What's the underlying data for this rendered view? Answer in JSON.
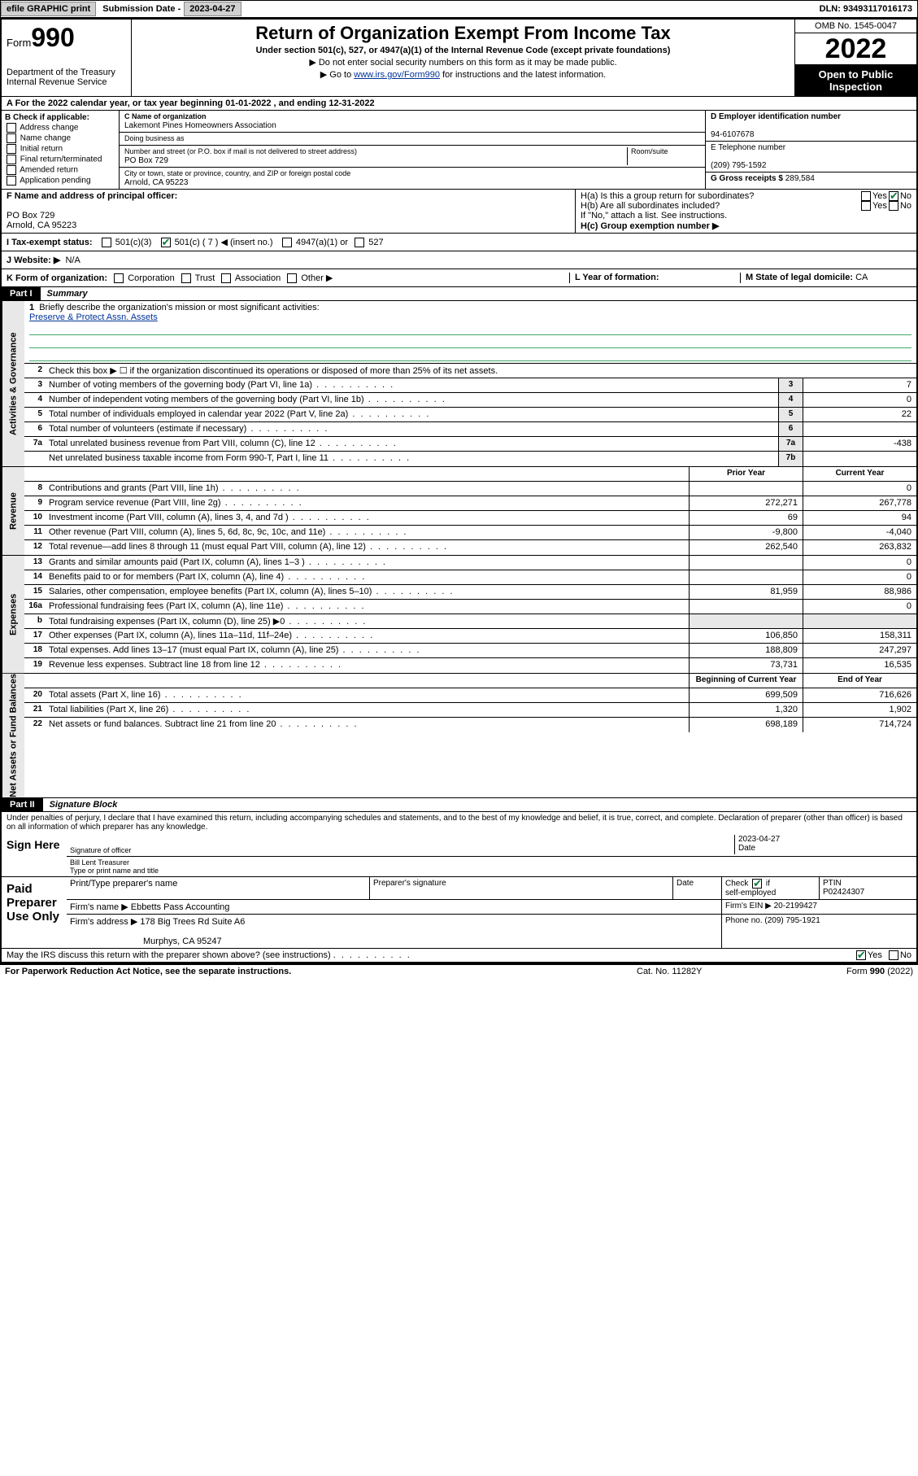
{
  "topbar": {
    "efile_btn": "efile GRAPHIC print",
    "sub_label": "Submission Date - ",
    "sub_date": "2023-04-27",
    "dln": "DLN: 93493117016173"
  },
  "header": {
    "form_word": "Form",
    "form_num": "990",
    "dept": "Department of the Treasury",
    "irs": "Internal Revenue Service",
    "title": "Return of Organization Exempt From Income Tax",
    "sub": "Under section 501(c), 527, or 4947(a)(1) of the Internal Revenue Code (except private foundations)",
    "note1": "▶ Do not enter social security numbers on this form as it may be made public.",
    "note2_a": "▶ Go to ",
    "note2_link": "www.irs.gov/Form990",
    "note2_b": " for instructions and the latest information.",
    "omb": "OMB No. 1545-0047",
    "year": "2022",
    "open": "Open to Public Inspection"
  },
  "row_a": "A For the 2022 calendar year, or tax year beginning 01-01-2022    , and ending 12-31-2022",
  "col_b": {
    "hdr": "B Check if applicable:",
    "items": [
      "Address change",
      "Name change",
      "Initial return",
      "Final return/terminated",
      "Amended return",
      "Application pending"
    ]
  },
  "col_c": {
    "name_lbl": "C Name of organization",
    "name": "Lakemont Pines Homeowners Association",
    "dba_lbl": "Doing business as",
    "dba": "",
    "street_lbl": "Number and street (or P.O. box if mail is not delivered to street address)",
    "room_lbl": "Room/suite",
    "street": "PO Box 729",
    "city_lbl": "City or town, state or province, country, and ZIP or foreign postal code",
    "city": "Arnold, CA  95223"
  },
  "col_d": {
    "ein_lbl": "D Employer identification number",
    "ein": "94-6107678",
    "tel_lbl": "E Telephone number",
    "tel": "(209) 795-1592",
    "gross_lbl": "G Gross receipts $ ",
    "gross": "289,584"
  },
  "sec_f": {
    "lbl": "F Name and address of principal officer:",
    "l1": "PO Box 729",
    "l2": "Arnold, CA  95223"
  },
  "sec_h": {
    "ha": "H(a)  Is this a group return for subordinates?",
    "hb": "H(b)  Are all subordinates included?",
    "hb_note": "If \"No,\" attach a list. See instructions.",
    "hc": "H(c)  Group exemption number ▶"
  },
  "row_i": {
    "lbl": "I   Tax-exempt status:",
    "c1": "501(c)(3)",
    "c2": "501(c) ( 7 ) ◀ (insert no.)",
    "c3": "4947(a)(1) or",
    "c4": "527"
  },
  "row_j": {
    "lbl": "J   Website: ▶",
    "val": "N/A"
  },
  "row_k": {
    "lbl": "K Form of organization:",
    "opts": [
      "Corporation",
      "Trust",
      "Association",
      "Other ▶"
    ],
    "l_lbl": "L Year of formation:",
    "m_lbl": "M State of legal domicile: ",
    "m_val": "CA"
  },
  "part1": {
    "name": "Part I",
    "title": "Summary"
  },
  "summary_sections": [
    {
      "vlabel": "Activities & Governance",
      "mission": {
        "n": "1",
        "lbl": "Briefly describe the organization's mission or most significant activities:",
        "text": "Preserve & Protect Assn. Assets"
      },
      "rows": [
        {
          "n": "2",
          "desc": "Check this box ▶ ☐  if the organization discontinued its operations or disposed of more than 25% of its net assets.",
          "box": "",
          "pv": "",
          "cv": "",
          "onecol": true
        },
        {
          "n": "3",
          "desc": "Number of voting members of the governing body (Part VI, line 1a)",
          "box": "3",
          "val": "7"
        },
        {
          "n": "4",
          "desc": "Number of independent voting members of the governing body (Part VI, line 1b)",
          "box": "4",
          "val": "0"
        },
        {
          "n": "5",
          "desc": "Total number of individuals employed in calendar year 2022 (Part V, line 2a)",
          "box": "5",
          "val": "22"
        },
        {
          "n": "6",
          "desc": "Total number of volunteers (estimate if necessary)",
          "box": "6",
          "val": ""
        },
        {
          "n": "7a",
          "desc": "Total unrelated business revenue from Part VIII, column (C), line 12",
          "box": "7a",
          "val": "-438"
        },
        {
          "n": "",
          "desc": "Net unrelated business taxable income from Form 990-T, Part I, line 11",
          "box": "7b",
          "val": ""
        }
      ]
    },
    {
      "vlabel": "Revenue",
      "header": {
        "pv": "Prior Year",
        "cv": "Current Year"
      },
      "rows": [
        {
          "n": "8",
          "desc": "Contributions and grants (Part VIII, line 1h)",
          "pv": "",
          "cv": "0"
        },
        {
          "n": "9",
          "desc": "Program service revenue (Part VIII, line 2g)",
          "pv": "272,271",
          "cv": "267,778"
        },
        {
          "n": "10",
          "desc": "Investment income (Part VIII, column (A), lines 3, 4, and 7d )",
          "pv": "69",
          "cv": "94"
        },
        {
          "n": "11",
          "desc": "Other revenue (Part VIII, column (A), lines 5, 6d, 8c, 9c, 10c, and 11e)",
          "pv": "-9,800",
          "cv": "-4,040"
        },
        {
          "n": "12",
          "desc": "Total revenue—add lines 8 through 11 (must equal Part VIII, column (A), line 12)",
          "pv": "262,540",
          "cv": "263,832"
        }
      ]
    },
    {
      "vlabel": "Expenses",
      "rows": [
        {
          "n": "13",
          "desc": "Grants and similar amounts paid (Part IX, column (A), lines 1–3 )",
          "pv": "",
          "cv": "0"
        },
        {
          "n": "14",
          "desc": "Benefits paid to or for members (Part IX, column (A), line 4)",
          "pv": "",
          "cv": "0"
        },
        {
          "n": "15",
          "desc": "Salaries, other compensation, employee benefits (Part IX, column (A), lines 5–10)",
          "pv": "81,959",
          "cv": "88,986"
        },
        {
          "n": "16a",
          "desc": "Professional fundraising fees (Part IX, column (A), line 11e)",
          "pv": "",
          "cv": "0"
        },
        {
          "n": "b",
          "desc": "Total fundraising expenses (Part IX, column (D), line 25) ▶0",
          "pv": "",
          "cv": "",
          "shade": true
        },
        {
          "n": "17",
          "desc": "Other expenses (Part IX, column (A), lines 11a–11d, 11f–24e)",
          "pv": "106,850",
          "cv": "158,311"
        },
        {
          "n": "18",
          "desc": "Total expenses. Add lines 13–17 (must equal Part IX, column (A), line 25)",
          "pv": "188,809",
          "cv": "247,297"
        },
        {
          "n": "19",
          "desc": "Revenue less expenses. Subtract line 18 from line 12",
          "pv": "73,731",
          "cv": "16,535"
        }
      ]
    },
    {
      "vlabel": "Net Assets or Fund Balances",
      "header": {
        "pv": "Beginning of Current Year",
        "cv": "End of Year"
      },
      "rows": [
        {
          "n": "20",
          "desc": "Total assets (Part X, line 16)",
          "pv": "699,509",
          "cv": "716,626"
        },
        {
          "n": "21",
          "desc": "Total liabilities (Part X, line 26)",
          "pv": "1,320",
          "cv": "1,902"
        },
        {
          "n": "22",
          "desc": "Net assets or fund balances. Subtract line 21 from line 20",
          "pv": "698,189",
          "cv": "714,724"
        }
      ]
    }
  ],
  "part2": {
    "name": "Part II",
    "title": "Signature Block"
  },
  "penalties": "Under penalties of perjury, I declare that I have examined this return, including accompanying schedules and statements, and to the best of my knowledge and belief, it is true, correct, and complete. Declaration of preparer (other than officer) is based on all information of which preparer has any knowledge.",
  "sign": {
    "lbl": "Sign Here",
    "sig_lbl": "Signature of officer",
    "date_lbl": "Date",
    "date": "2023-04-27",
    "name": "Bill Lent Treasurer",
    "name_lbl": "Type or print name and title"
  },
  "prep": {
    "lbl": "Paid Preparer Use Only",
    "h_name": "Print/Type preparer's name",
    "h_sig": "Preparer's signature",
    "h_date": "Date",
    "h_chk": "Check ☑ if self-employed",
    "h_ptin": "PTIN",
    "ptin": "P02424307",
    "firm_name_lbl": "Firm's name     ▶ ",
    "firm_name": "Ebbetts Pass Accounting",
    "firm_ein_lbl": "Firm's EIN ▶ ",
    "firm_ein": "20-2199427",
    "firm_addr_lbl": "Firm's address ▶ ",
    "firm_addr1": "178 Big Trees Rd Suite A6",
    "firm_addr2": "Murphys, CA  95247",
    "phone_lbl": "Phone no. ",
    "phone": "(209) 795-1921"
  },
  "may_irs": "May the IRS discuss this return with the preparer shown above? (see instructions)",
  "foot": {
    "l": "For Paperwork Reduction Act Notice, see the separate instructions.",
    "m": "Cat. No. 11282Y",
    "r": "Form 990 (2022)"
  }
}
